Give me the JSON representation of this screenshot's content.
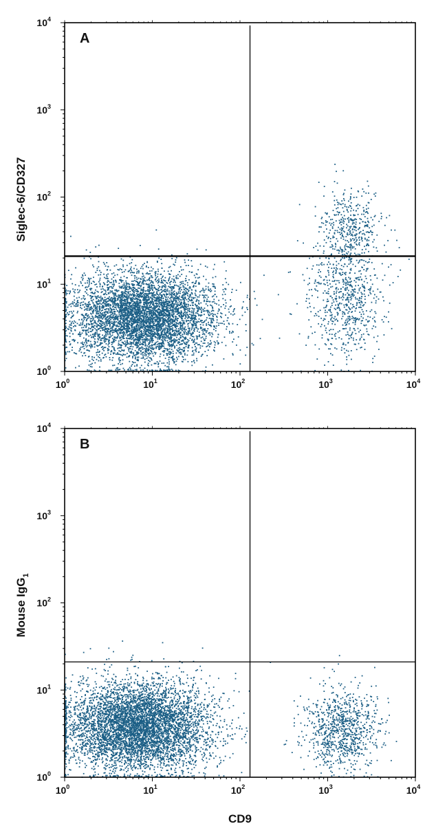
{
  "colors": {
    "dots": "#1c5f86",
    "axes": "#000000",
    "background": "#ffffff"
  },
  "chart_data": [
    {
      "type": "scatter",
      "panel_label": "A",
      "xlabel": "",
      "ylabel": "Siglec-6/CD327",
      "xscale": "log",
      "yscale": "log",
      "xlim": [
        1,
        10000
      ],
      "ylim": [
        1,
        10000
      ],
      "x_ticks": [
        {
          "base": "10",
          "exp": "0"
        },
        {
          "base": "10",
          "exp": "1"
        },
        {
          "base": "10",
          "exp": "2"
        },
        {
          "base": "10",
          "exp": "3"
        },
        {
          "base": "10",
          "exp": "4"
        }
      ],
      "y_ticks": [
        {
          "base": "10",
          "exp": "0"
        },
        {
          "base": "10",
          "exp": "1"
        },
        {
          "base": "10",
          "exp": "2"
        },
        {
          "base": "10",
          "exp": "3"
        },
        {
          "base": "10",
          "exp": "4"
        }
      ],
      "quadrant_gate": {
        "x": 130,
        "y": 21
      },
      "populations": [
        {
          "name": "",
          "center_x": 8,
          "center_y": 4.2,
          "spread_x_decades": 0.42,
          "spread_y_decades": 0.26,
          "count": 5200
        },
        {
          "name": "",
          "center_x": 1600,
          "center_y": 6,
          "spread_x_decades": 0.22,
          "spread_y_decades": 0.33,
          "count": 700
        },
        {
          "name": "",
          "center_x": 1800,
          "center_y": 40,
          "spread_x_decades": 0.18,
          "spread_y_decades": 0.22,
          "count": 420
        }
      ]
    },
    {
      "type": "scatter",
      "panel_label": "B",
      "xlabel": "CD9",
      "ylabel": "Mouse IgG",
      "ylabel_subscript": "1",
      "xscale": "log",
      "yscale": "log",
      "xlim": [
        1,
        10000
      ],
      "ylim": [
        1,
        10000
      ],
      "x_ticks": [
        {
          "base": "10",
          "exp": "0"
        },
        {
          "base": "10",
          "exp": "1"
        },
        {
          "base": "10",
          "exp": "2"
        },
        {
          "base": "10",
          "exp": "3"
        },
        {
          "base": "10",
          "exp": "4"
        }
      ],
      "y_ticks": [
        {
          "base": "10",
          "exp": "0"
        },
        {
          "base": "10",
          "exp": "1"
        },
        {
          "base": "10",
          "exp": "2"
        },
        {
          "base": "10",
          "exp": "3"
        },
        {
          "base": "10",
          "exp": "4"
        }
      ],
      "quadrant_gate": {
        "x": 130,
        "y": 21
      },
      "populations": [
        {
          "name": "",
          "center_x": 7,
          "center_y": 3.8,
          "spread_x_decades": 0.42,
          "spread_y_decades": 0.26,
          "count": 5600
        },
        {
          "name": "",
          "center_x": 1500,
          "center_y": 3.5,
          "spread_x_decades": 0.22,
          "spread_y_decades": 0.24,
          "count": 900
        }
      ]
    }
  ]
}
